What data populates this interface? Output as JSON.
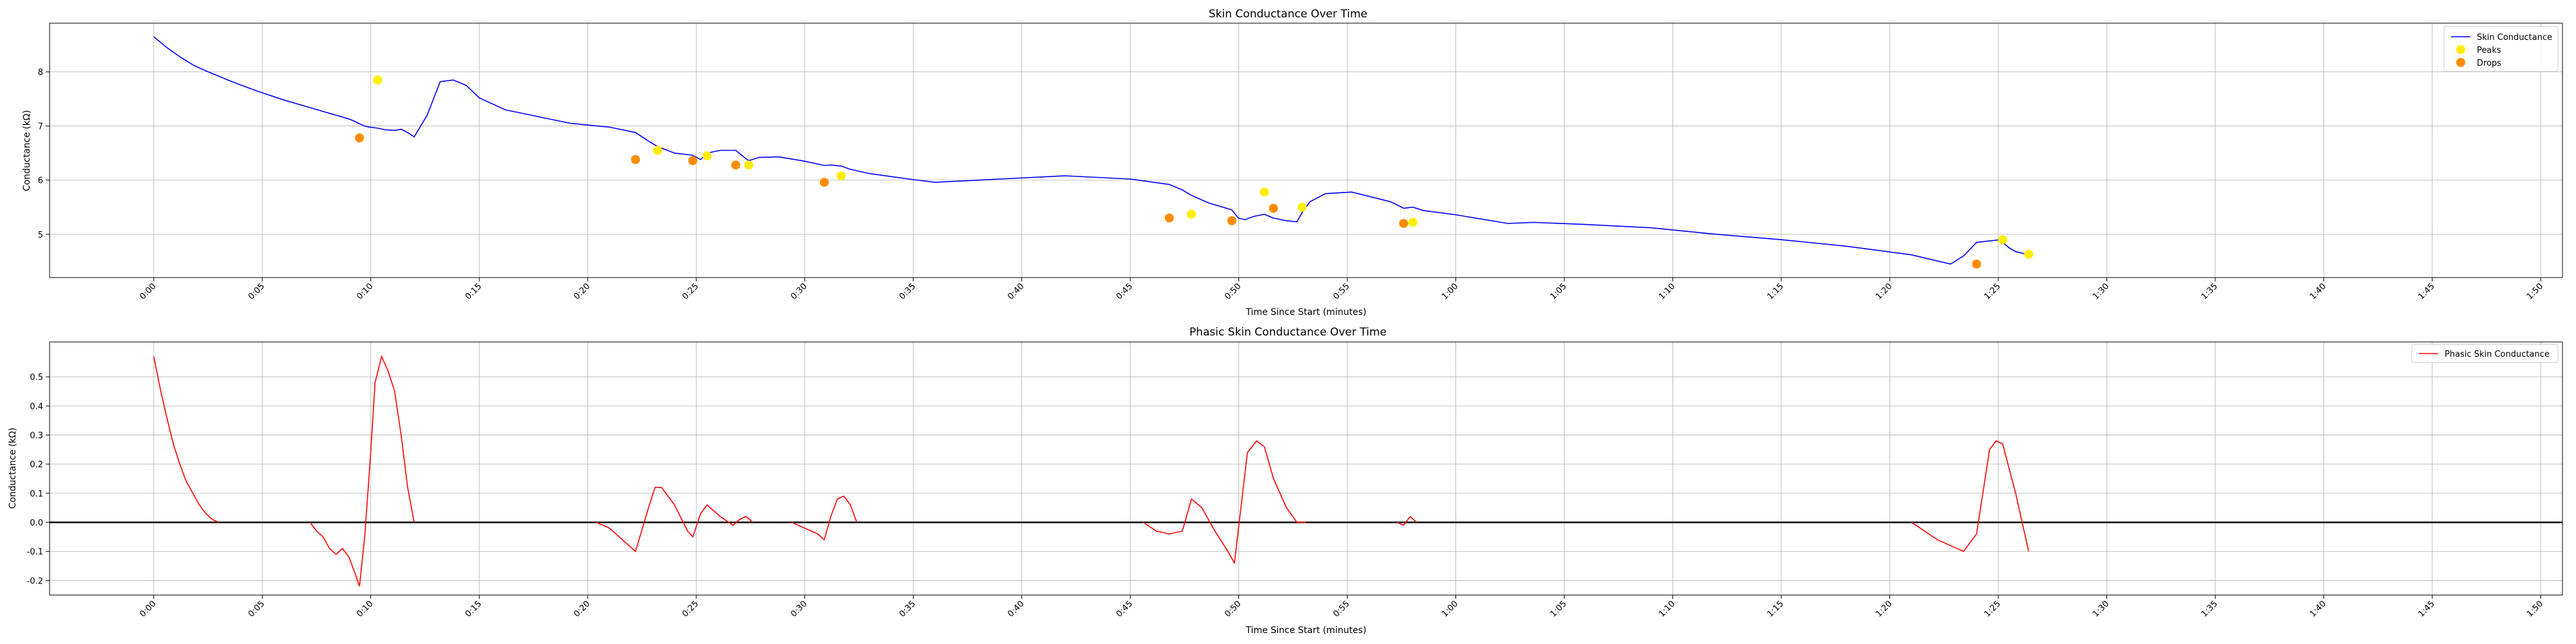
{
  "chart_data": [
    {
      "type": "line",
      "title": "Skin Conductance Over Time",
      "xlabel": "Time Since Start (minutes)",
      "ylabel": "Conductance (kΩ)",
      "xlim": [
        -0.08,
        1.85
      ],
      "ylim": [
        4.2,
        8.9
      ],
      "x_ticks": [
        "0:00",
        "0:05",
        "0:10",
        "0:15",
        "0:20",
        "0:25",
        "0:30",
        "0:35",
        "0:40",
        "0:45",
        "0:50",
        "0:55",
        "1:00",
        "1:05",
        "1:10",
        "1:15",
        "1:20",
        "1:25",
        "1:30",
        "1:35",
        "1:40",
        "1:45",
        "1:50"
      ],
      "y_ticks": [
        5,
        6,
        7,
        8
      ],
      "grid": true,
      "legend_position": "top-right",
      "colors": {
        "line": "#0000ff",
        "peaks": "#ffee00",
        "drops": "#ff8c00"
      },
      "series": [
        {
          "name": "Skin Conductance",
          "x": [
            0.0,
            0.01,
            0.02,
            0.03,
            0.04,
            0.05,
            0.06,
            0.08,
            0.1,
            0.12,
            0.13,
            0.14,
            0.15,
            0.155,
            0.158,
            0.162,
            0.166,
            0.172,
            0.178,
            0.185,
            0.19,
            0.195,
            0.2,
            0.21,
            0.22,
            0.23,
            0.24,
            0.25,
            0.27,
            0.3,
            0.32,
            0.35,
            0.37,
            0.38,
            0.387,
            0.4,
            0.414,
            0.42,
            0.425,
            0.435,
            0.447,
            0.452,
            0.457,
            0.465,
            0.48,
            0.5,
            0.515,
            0.52,
            0.528,
            0.535,
            0.55,
            0.58,
            0.6,
            0.65,
            0.7,
            0.75,
            0.78,
            0.79,
            0.797,
            0.81,
            0.828,
            0.833,
            0.838,
            0.845,
            0.853,
            0.86,
            0.87,
            0.878,
            0.882,
            0.888,
            0.9,
            0.92,
            0.95,
            0.96,
            0.967,
            0.975,
            1.0,
            1.04,
            1.06,
            1.1,
            1.15,
            1.2,
            1.25,
            1.3,
            1.35,
            1.38,
            1.39,
            1.4,
            1.418,
            1.42,
            1.425,
            1.43,
            1.435,
            1.44
          ],
          "y": [
            8.65,
            8.45,
            8.28,
            8.13,
            8.02,
            7.92,
            7.82,
            7.64,
            7.48,
            7.34,
            7.27,
            7.2,
            7.13,
            7.08,
            7.04,
            7.0,
            6.98,
            6.96,
            6.93,
            6.92,
            6.94,
            6.88,
            6.8,
            7.2,
            7.82,
            7.85,
            7.75,
            7.52,
            7.3,
            7.15,
            7.05,
            6.98,
            6.88,
            6.72,
            6.62,
            6.5,
            6.46,
            6.38,
            6.5,
            6.55,
            6.55,
            6.45,
            6.36,
            6.42,
            6.43,
            6.35,
            6.27,
            6.28,
            6.26,
            6.2,
            6.12,
            6.02,
            5.96,
            6.02,
            6.08,
            6.02,
            5.92,
            5.82,
            5.72,
            5.58,
            5.45,
            5.3,
            5.27,
            5.33,
            5.37,
            5.3,
            5.25,
            5.23,
            5.4,
            5.6,
            5.75,
            5.78,
            5.6,
            5.48,
            5.5,
            5.44,
            5.36,
            5.2,
            5.22,
            5.18,
            5.12,
            5.0,
            4.9,
            4.78,
            4.62,
            4.45,
            4.6,
            4.85,
            4.9,
            4.85,
            4.75,
            4.68,
            4.65,
            4.63
          ]
        },
        {
          "name": "Peaks",
          "x": [
            0.172,
            0.387,
            0.425,
            0.457,
            0.528,
            0.797,
            0.853,
            0.882,
            0.967,
            1.42,
            1.44
          ],
          "y": [
            7.85,
            6.55,
            6.45,
            6.28,
            6.08,
            5.37,
            5.78,
            5.5,
            5.22,
            4.9,
            4.63
          ]
        },
        {
          "name": "Drops",
          "x": [
            0.158,
            0.37,
            0.414,
            0.447,
            0.515,
            0.78,
            0.828,
            0.86,
            0.96,
            1.4
          ],
          "y": [
            6.78,
            6.38,
            6.36,
            6.28,
            5.96,
            5.3,
            5.25,
            5.48,
            5.2,
            4.45
          ]
        }
      ]
    },
    {
      "type": "line",
      "title": "Phasic Skin Conductance Over Time",
      "xlabel": "Time Since Start (minutes)",
      "ylabel": "Conductance (kΩ)",
      "xlim": [
        -0.08,
        1.85
      ],
      "ylim": [
        -0.25,
        0.62
      ],
      "x_ticks": [
        "0:00",
        "0:05",
        "0:10",
        "0:15",
        "0:20",
        "0:25",
        "0:30",
        "0:35",
        "0:40",
        "0:45",
        "0:50",
        "0:55",
        "1:00",
        "1:05",
        "1:10",
        "1:15",
        "1:20",
        "1:25",
        "1:30",
        "1:35",
        "1:40",
        "1:45",
        "1:50"
      ],
      "y_ticks": [
        -0.2,
        -0.1,
        0.0,
        0.1,
        0.2,
        0.3,
        0.4,
        0.5
      ],
      "grid": true,
      "legend_position": "top-right",
      "colors": {
        "line": "#ff0000",
        "zero_line": "#000000"
      },
      "series": [
        {
          "name": "Phasic Skin Conductance",
          "segments": [
            {
              "x": [
                0.0,
                0.005,
                0.01,
                0.015,
                0.02,
                0.025,
                0.03,
                0.035,
                0.04,
                0.045,
                0.05
              ],
              "y": [
                0.57,
                0.46,
                0.36,
                0.27,
                0.2,
                0.14,
                0.1,
                0.06,
                0.03,
                0.01,
                0.0
              ]
            },
            {
              "x": [
                0.12,
                0.125,
                0.13,
                0.135,
                0.14,
                0.145,
                0.15,
                0.155,
                0.158,
                0.162,
                0.166,
                0.17,
                0.175,
                0.18,
                0.185,
                0.19,
                0.195,
                0.2
              ],
              "y": [
                0.0,
                -0.03,
                -0.05,
                -0.09,
                -0.11,
                -0.09,
                -0.12,
                -0.18,
                -0.22,
                -0.05,
                0.2,
                0.48,
                0.57,
                0.52,
                0.45,
                0.3,
                0.12,
                0.0
              ]
            },
            {
              "x": [
                0.34,
                0.35,
                0.36,
                0.37,
                0.38,
                0.385,
                0.39,
                0.4,
                0.41,
                0.414,
                0.42,
                0.425,
                0.435,
                0.445,
                0.45,
                0.455,
                0.46
              ],
              "y": [
                0.0,
                -0.02,
                -0.06,
                -0.1,
                0.05,
                0.12,
                0.12,
                0.06,
                -0.03,
                -0.05,
                0.03,
                0.06,
                0.02,
                -0.01,
                0.01,
                0.02,
                0.0
              ]
            },
            {
              "x": [
                0.49,
                0.5,
                0.51,
                0.515,
                0.52,
                0.525,
                0.53,
                0.535,
                0.54
              ],
              "y": [
                0.0,
                -0.02,
                -0.04,
                -0.06,
                0.02,
                0.08,
                0.09,
                0.06,
                0.0
              ]
            },
            {
              "x": [
                0.76,
                0.77,
                0.78,
                0.79,
                0.797,
                0.805,
                0.815,
                0.825,
                0.83,
                0.835,
                0.84,
                0.847,
                0.853,
                0.86,
                0.87,
                0.878,
                0.885
              ],
              "y": [
                0.0,
                -0.03,
                -0.04,
                -0.03,
                0.08,
                0.05,
                -0.03,
                -0.1,
                -0.14,
                0.05,
                0.24,
                0.28,
                0.26,
                0.15,
                0.05,
                0.0,
                0.0
              ]
            },
            {
              "x": [
                0.955,
                0.96,
                0.965,
                0.97
              ],
              "y": [
                0.0,
                -0.01,
                0.02,
                0.0
              ]
            },
            {
              "x": [
                1.35,
                1.36,
                1.37,
                1.38,
                1.39,
                1.4,
                1.41,
                1.415,
                1.42,
                1.43,
                1.44
              ],
              "y": [
                0.0,
                -0.03,
                -0.06,
                -0.08,
                -0.1,
                -0.04,
                0.25,
                0.28,
                0.27,
                0.1,
                -0.1
              ]
            }
          ]
        }
      ]
    }
  ]
}
